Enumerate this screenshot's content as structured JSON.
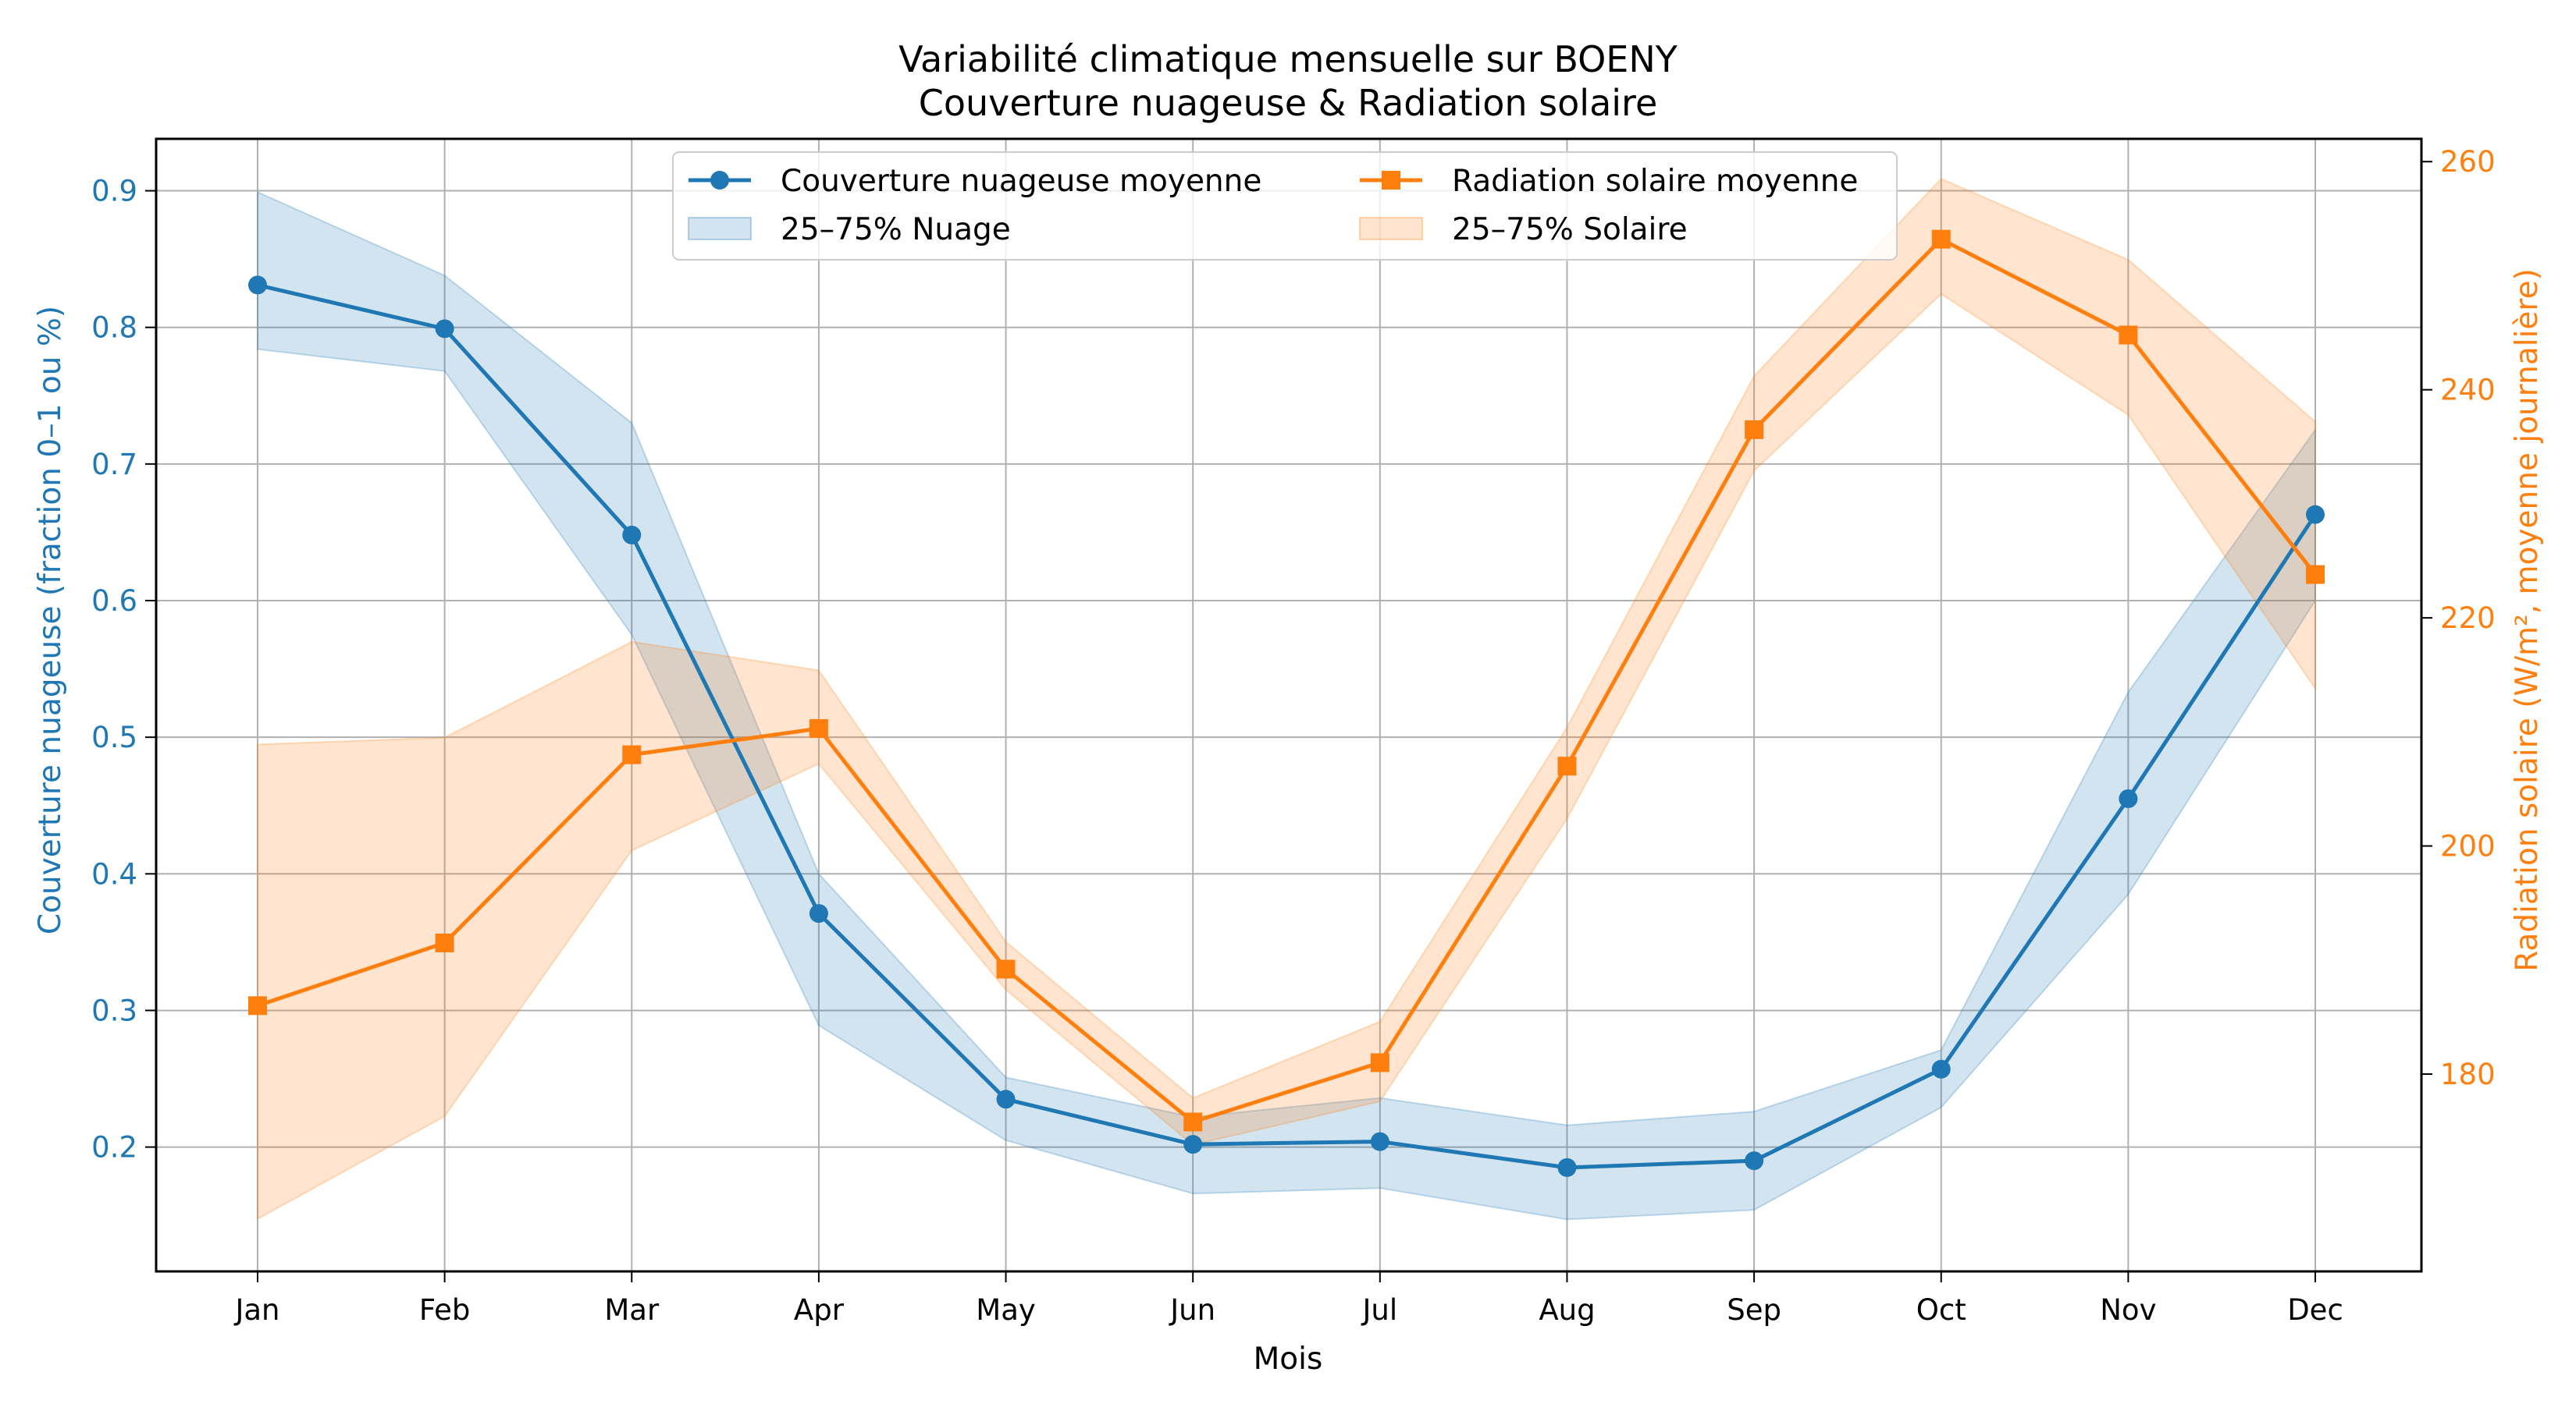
{
  "chart_data": {
    "type": "line",
    "title": "Variabilité climatique mensuelle sur BOENY",
    "subtitle": "Couverture nuageuse & Radiation solaire",
    "xlabel": "Mois",
    "categories": [
      "Jan",
      "Feb",
      "Mar",
      "Apr",
      "May",
      "Jun",
      "Jul",
      "Aug",
      "Sep",
      "Oct",
      "Nov",
      "Dec"
    ],
    "y_left": {
      "label": "Couverture nuageuse (fraction 0–1 ou %)",
      "ylim": [
        0.109,
        0.938
      ],
      "ticks": [
        "0.2",
        "0.3",
        "0.4",
        "0.5",
        "0.6",
        "0.7",
        "0.8",
        "0.9"
      ],
      "color": "#1f77b4"
    },
    "y_right": {
      "label": "Radiation solaire (W/m², moyenne journalière)",
      "ylim": [
        162.7,
        262.0
      ],
      "ticks": [
        "180",
        "200",
        "220",
        "240",
        "260"
      ],
      "color": "#ff7f0e"
    },
    "grid": true,
    "legend_position": "upper-center",
    "series": [
      {
        "name": "Couverture nuageuse moyenne",
        "axis": "left",
        "color": "#1f77b4",
        "marker": "circle",
        "values": [
          0.831,
          0.799,
          0.648,
          0.371,
          0.235,
          0.202,
          0.204,
          0.185,
          0.19,
          0.257,
          0.455,
          0.663
        ]
      },
      {
        "name": "Radiation solaire moyenne",
        "axis": "right",
        "color": "#ff7f0e",
        "marker": "square",
        "values": [
          186.0,
          191.5,
          208.0,
          210.3,
          189.2,
          175.8,
          181.0,
          207.0,
          236.5,
          253.2,
          244.8,
          223.8
        ]
      }
    ],
    "bands": [
      {
        "name": "25–75% Nuage",
        "axis": "left",
        "color": "#1f77b4",
        "low": [
          0.784,
          0.768,
          0.575,
          0.289,
          0.205,
          0.166,
          0.17,
          0.147,
          0.154,
          0.229,
          0.385,
          0.6
        ],
        "high": [
          0.899,
          0.838,
          0.73,
          0.4,
          0.251,
          0.222,
          0.236,
          0.216,
          0.226,
          0.271,
          0.533,
          0.725
        ]
      },
      {
        "name": "25–75% Solaire",
        "axis": "right",
        "color": "#ff7f0e",
        "low": [
          167.3,
          176.3,
          199.6,
          207.2,
          187.4,
          173.8,
          177.6,
          202.4,
          232.9,
          248.4,
          237.8,
          213.8
        ],
        "high": [
          208.9,
          209.5,
          217.9,
          215.4,
          191.6,
          177.9,
          184.6,
          210.4,
          241.2,
          258.5,
          251.4,
          237.2
        ]
      }
    ]
  }
}
